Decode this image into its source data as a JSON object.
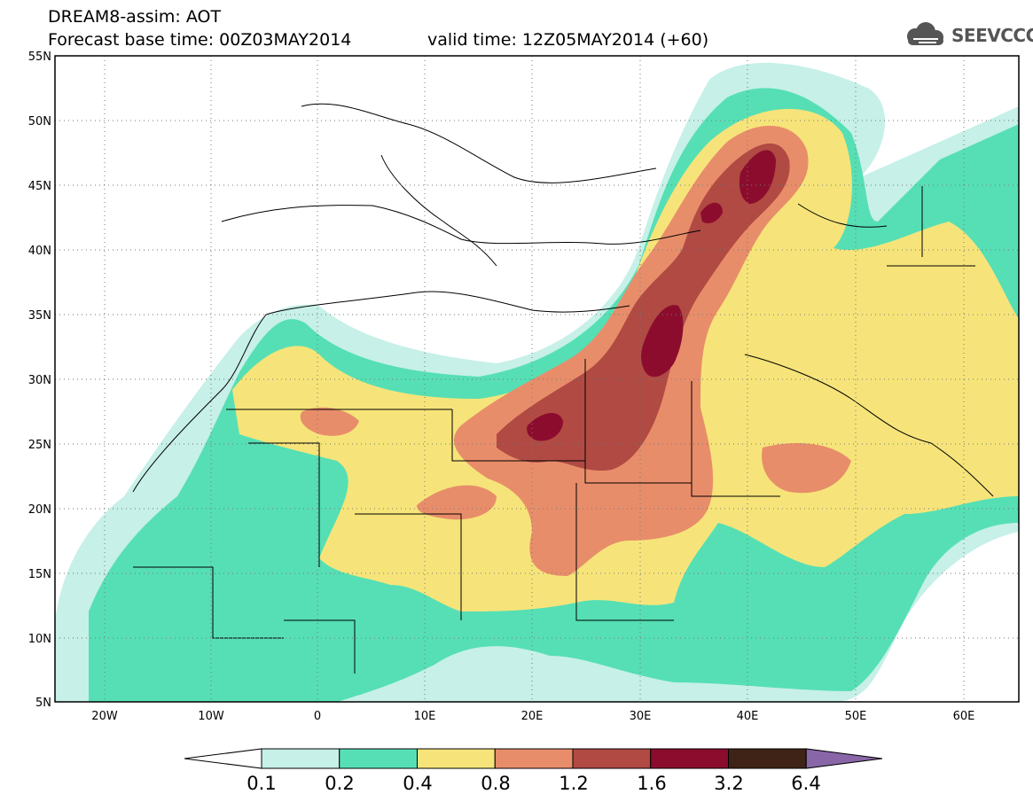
{
  "header": {
    "title": "DREAM8-assim: AOT",
    "base_time": "Forecast base time: 00Z03MAY2014",
    "valid_time": "valid time: 12Z05MAY2014 (+60)",
    "logo": "SEEVCCC"
  },
  "map": {
    "lon_range": [
      -25,
      65
    ],
    "lat_range": [
      5,
      55
    ],
    "lat_labels": [
      "55N",
      "50N",
      "45N",
      "40N",
      "35N",
      "30N",
      "25N",
      "20N",
      "15N",
      "10N",
      "5N"
    ],
    "lon_labels": [
      "20W",
      "10W",
      "0",
      "10E",
      "20E",
      "30E",
      "40E",
      "50E",
      "60E"
    ]
  },
  "colorbar": {
    "labels": [
      "0.1",
      "0.2",
      "0.4",
      "0.8",
      "1.2",
      "1.6",
      "3.2",
      "6.4"
    ],
    "colors": [
      "#ffffff",
      "#c6f0e8",
      "#56dfb4",
      "#f6e47a",
      "#e88d6a",
      "#b04a43",
      "#8c0c2e",
      "#3e2316",
      "#8866a8"
    ]
  }
}
